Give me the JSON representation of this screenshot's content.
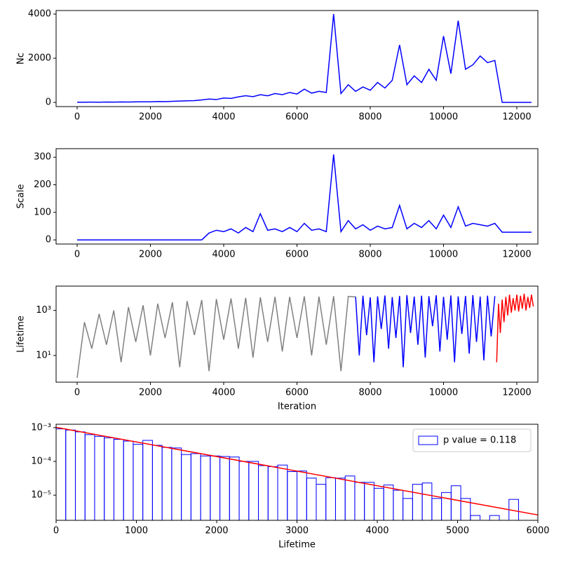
{
  "chart_data": [
    {
      "type": "line",
      "ylabel": "Nc",
      "x": [
        0,
        200,
        400,
        600,
        800,
        1000,
        1200,
        1400,
        1600,
        1800,
        2000,
        2200,
        2400,
        2600,
        2800,
        3000,
        3200,
        3400,
        3600,
        3800,
        4000,
        4200,
        4400,
        4600,
        4800,
        5000,
        5200,
        5400,
        5600,
        5800,
        6000,
        6200,
        6400,
        6600,
        6800,
        7000,
        7200,
        7400,
        7600,
        7800,
        8000,
        8200,
        8400,
        8600,
        8800,
        9000,
        9200,
        9400,
        9600,
        9800,
        10000,
        10200,
        10400,
        10600,
        10800,
        11000,
        11200,
        11400,
        11600,
        11800,
        12000,
        12200,
        12400
      ],
      "series": [
        {
          "color": "blue",
          "values": [
            10,
            8,
            12,
            10,
            15,
            12,
            20,
            18,
            25,
            30,
            28,
            40,
            35,
            50,
            60,
            70,
            80,
            110,
            150,
            130,
            200,
            180,
            250,
            300,
            260,
            350,
            300,
            400,
            350,
            450,
            380,
            600,
            420,
            500,
            450,
            4000,
            400,
            800,
            500,
            700,
            550,
            900,
            650,
            1000,
            2600,
            800,
            1200,
            900,
            1500,
            1000,
            3000,
            1300,
            3700,
            1500,
            1700,
            2100,
            1800,
            1900,
            0,
            0,
            0,
            0,
            0
          ]
        }
      ],
      "xlim": [
        -574,
        12574
      ],
      "xticks": [
        0,
        2000,
        4000,
        6000,
        8000,
        10000,
        12000
      ],
      "ylim": [
        -190,
        4160
      ],
      "yticks": [
        0,
        2000,
        4000
      ]
    },
    {
      "type": "line",
      "ylabel": "Scale",
      "x": [
        0,
        200,
        400,
        600,
        800,
        1000,
        1200,
        1400,
        1600,
        1800,
        2000,
        2200,
        2400,
        2600,
        2800,
        3000,
        3200,
        3400,
        3600,
        3800,
        4000,
        4200,
        4400,
        4600,
        4800,
        5000,
        5200,
        5400,
        5600,
        5800,
        6000,
        6200,
        6400,
        6600,
        6800,
        7000,
        7200,
        7400,
        7600,
        7800,
        8000,
        8200,
        8400,
        8600,
        8800,
        9000,
        9200,
        9400,
        9600,
        9800,
        10000,
        10200,
        10400,
        10600,
        10800,
        11000,
        11200,
        11400,
        11600,
        11800,
        12000,
        12200,
        12400
      ],
      "series": [
        {
          "color": "blue",
          "values": [
            0,
            0,
            0,
            0,
            0,
            0,
            0,
            0,
            0,
            0,
            0,
            0,
            0,
            0,
            0,
            0,
            0,
            0,
            25,
            35,
            30,
            40,
            25,
            45,
            30,
            95,
            35,
            40,
            30,
            45,
            30,
            60,
            35,
            40,
            30,
            310,
            30,
            70,
            40,
            55,
            35,
            50,
            40,
            45,
            125,
            40,
            60,
            45,
            70,
            40,
            90,
            45,
            120,
            50,
            60,
            55,
            50,
            60,
            28,
            28,
            28,
            28,
            28
          ]
        }
      ],
      "xlim": [
        -574,
        12574
      ],
      "xticks": [
        0,
        2000,
        4000,
        6000,
        8000,
        10000,
        12000
      ],
      "ylim": [
        -15,
        331
      ],
      "yticks": [
        0,
        100,
        200,
        300
      ]
    },
    {
      "type": "line",
      "ylabel": "Lifetime",
      "xlabel": "Iteration",
      "yscale": "log",
      "series": [
        {
          "color": "gray",
          "x": [
            0,
            200,
            400,
            600,
            800,
            1000,
            1200,
            1400,
            1600,
            1800,
            2000,
            2200,
            2400,
            2600,
            2800,
            3000,
            3200,
            3400,
            3600,
            3800,
            4000,
            4200,
            4400,
            4600,
            4800,
            5000,
            5200,
            5400,
            5600,
            5800,
            6000,
            6200,
            6400,
            6600,
            6800,
            7000,
            7200,
            7400,
            7600
          ],
          "values": [
            1,
            300,
            20,
            700,
            30,
            1000,
            5,
            1400,
            40,
            1700,
            10,
            2000,
            60,
            2300,
            3,
            2600,
            80,
            2900,
            2,
            3200,
            50,
            3400,
            20,
            3600,
            8,
            3800,
            40,
            4000,
            15,
            4000,
            60,
            4200,
            10,
            4100,
            30,
            4300,
            2,
            4200,
            4000
          ]
        },
        {
          "color": "blue",
          "x": [
            7600,
            7700,
            7800,
            7900,
            8000,
            8100,
            8200,
            8300,
            8400,
            8500,
            8600,
            8700,
            8800,
            8900,
            9000,
            9100,
            9200,
            9300,
            9400,
            9500,
            9600,
            9700,
            9800,
            9900,
            10000,
            10100,
            10200,
            10300,
            10400,
            10500,
            10600,
            10700,
            10800,
            10900,
            11000,
            11100,
            11200,
            11300,
            11400
          ],
          "values": [
            4000,
            10,
            4500,
            80,
            3800,
            5,
            4200,
            150,
            4600,
            20,
            3900,
            60,
            4400,
            3,
            4800,
            100,
            4100,
            30,
            4500,
            8,
            4300,
            200,
            4700,
            15,
            4000,
            50,
            4600,
            5,
            4200,
            90,
            4400,
            12,
            4800,
            40,
            4100,
            6,
            4500,
            70,
            4300
          ]
        },
        {
          "color": "red",
          "x": [
            11450,
            11500,
            11550,
            11600,
            11650,
            11700,
            11750,
            11800,
            11850,
            11900,
            11950,
            12000,
            12050,
            12100,
            12150,
            12200,
            12250,
            12300,
            12350,
            12400,
            12450
          ],
          "values": [
            5,
            2000,
            100,
            3000,
            300,
            4000,
            600,
            5000,
            800,
            3500,
            1000,
            5000,
            900,
            4500,
            1200,
            5500,
            1000,
            4000,
            1300,
            5000,
            1500
          ]
        }
      ],
      "xlim": [
        -574,
        12574
      ],
      "xticks": [
        0,
        2000,
        4000,
        6000,
        8000,
        10000,
        12000
      ],
      "ylim": [
        0.65,
        12000
      ],
      "yticks": [
        {
          "value": 10,
          "label": "10¹"
        },
        {
          "value": 1000,
          "label": "10³"
        }
      ]
    },
    {
      "type": "histogram",
      "xlabel": "Lifetime",
      "yscale": "log",
      "legend": "upper right",
      "bins": [
        0,
        120,
        240,
        360,
        480,
        600,
        720,
        840,
        960,
        1080,
        1200,
        1320,
        1440,
        1560,
        1680,
        1800,
        1920,
        2040,
        2160,
        2280,
        2400,
        2520,
        2640,
        2760,
        2880,
        3000,
        3120,
        3240,
        3360,
        3480,
        3600,
        3720,
        3840,
        3960,
        4080,
        4200,
        4320,
        4440,
        4560,
        4680,
        4800,
        4920,
        5040,
        5160,
        5280,
        5400,
        5520,
        5640,
        5760
      ],
      "series": [
        {
          "name": "p value = 0.118",
          "color": "blue",
          "values": [
            0.00092,
            0.00085,
            0.00075,
            0.00062,
            0.00055,
            0.0005,
            0.00045,
            0.0004,
            0.00032,
            0.00042,
            0.0003,
            0.00026,
            0.00025,
            0.00016,
            0.00017,
            0.000145,
            0.000145,
            0.00014,
            0.000135,
            0.0001,
            0.0001,
            7.5e-05,
            7e-05,
            7.8e-05,
            5e-05,
            5.2e-05,
            3.2e-05,
            2.1e-05,
            3.3e-05,
            3.2e-05,
            3.7e-05,
            2.4e-05,
            2.4e-05,
            1.6e-05,
            2e-05,
            1.4e-05,
            8e-06,
            2.1e-05,
            2.3e-05,
            8e-06,
            1.2e-05,
            1.9e-05,
            8e-06,
            2.5e-06,
            0,
            2.5e-06,
            0,
            7.5e-06
          ]
        }
      ],
      "fit": {
        "color": "red",
        "x": [
          0,
          6000
        ],
        "values": [
          0.00102,
          2.6e-06
        ]
      },
      "xlim": [
        0,
        6000
      ],
      "xticks": [
        0,
        1000,
        2000,
        3000,
        4000,
        5000,
        6000
      ],
      "ylim": [
        1.8e-06,
        0.00126
      ],
      "yticks": [
        {
          "value": 0.001,
          "label": "10⁻³"
        },
        {
          "value": 0.0001,
          "label": "10⁻⁴"
        },
        {
          "value": 1e-05,
          "label": "10⁻⁵"
        }
      ]
    }
  ]
}
